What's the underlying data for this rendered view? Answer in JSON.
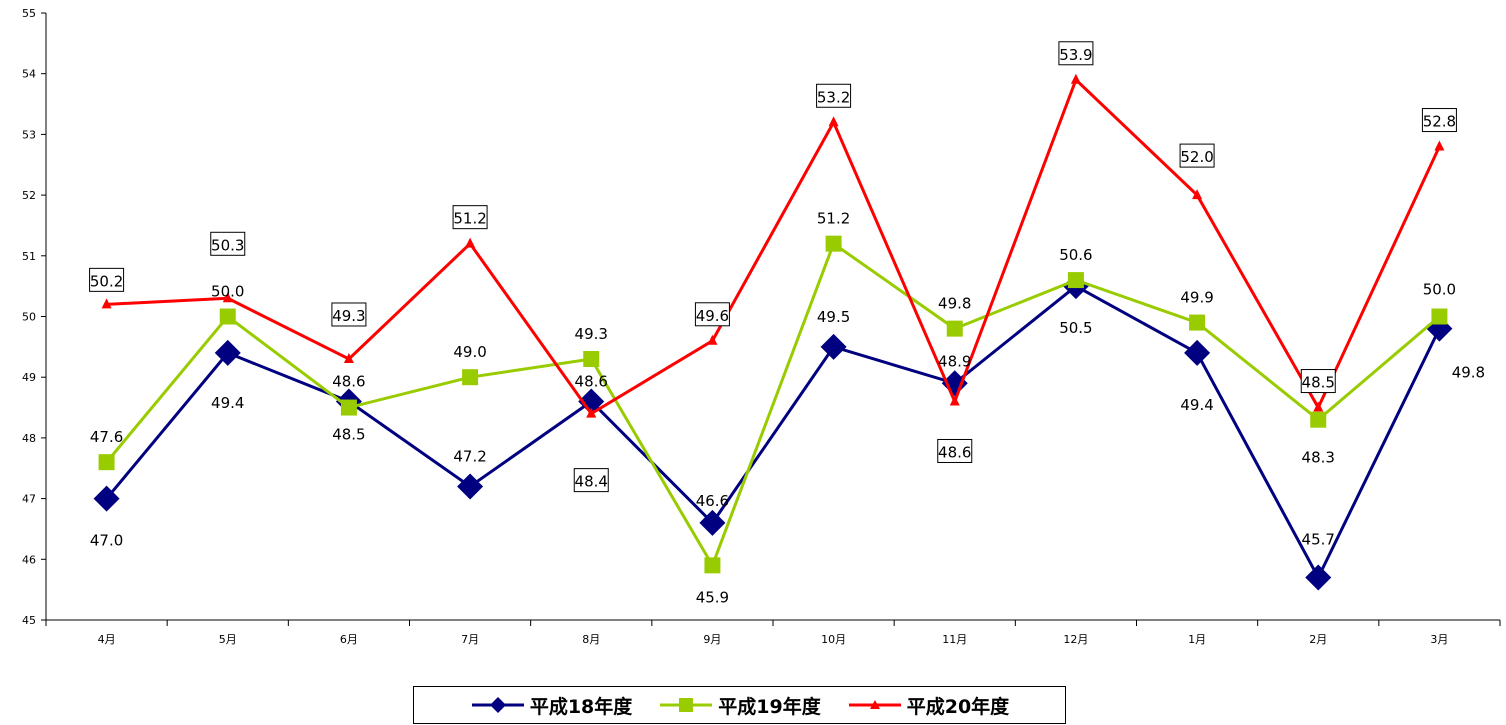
{
  "chart_data": {
    "type": "line",
    "categories": [
      "4月",
      "5月",
      "6月",
      "7月",
      "8月",
      "9月",
      "10月",
      "11月",
      "12月",
      "1月",
      "2月",
      "3月"
    ],
    "ylim": [
      45,
      55
    ],
    "yticks": [
      "45",
      "46",
      "47",
      "48",
      "49",
      "50",
      "51",
      "52",
      "53",
      "54",
      "55"
    ],
    "grid": false,
    "legend_position": "bottom",
    "series": [
      {
        "name": "平成18年度",
        "color": "#000080",
        "marker": "diamond",
        "values": [
          47.0,
          49.4,
          48.6,
          47.2,
          48.6,
          46.6,
          49.5,
          48.9,
          50.5,
          49.4,
          45.7,
          49.8
        ],
        "labels": [
          "47.0",
          "49.4",
          "48.6",
          "47.2",
          "48.6",
          "46.6",
          "49.5",
          "48.9",
          "50.5",
          "49.4",
          "45.7",
          "49.8"
        ]
      },
      {
        "name": "平成19年度",
        "color": "#99CC00",
        "marker": "square",
        "values": [
          47.6,
          50.0,
          48.5,
          49.0,
          49.3,
          45.9,
          51.2,
          49.8,
          50.6,
          49.9,
          48.3,
          50.0
        ],
        "labels": [
          "47.6",
          "50.0",
          "48.5",
          "49.0",
          "49.3",
          "45.9",
          "51.2",
          "49.8",
          "50.6",
          "49.9",
          "48.3",
          "50.0"
        ]
      },
      {
        "name": "平成20年度",
        "color": "#FF0000",
        "marker": "triangle",
        "values": [
          50.2,
          50.3,
          49.3,
          51.2,
          48.4,
          49.6,
          53.2,
          48.6,
          53.9,
          52.0,
          48.5,
          52.8
        ],
        "labels": [
          "50.2",
          "50.3",
          "49.3",
          "51.2",
          "48.4",
          "49.6",
          "53.2",
          "48.6",
          "53.9",
          "52.0",
          "48.5",
          "52.8"
        ]
      }
    ]
  }
}
